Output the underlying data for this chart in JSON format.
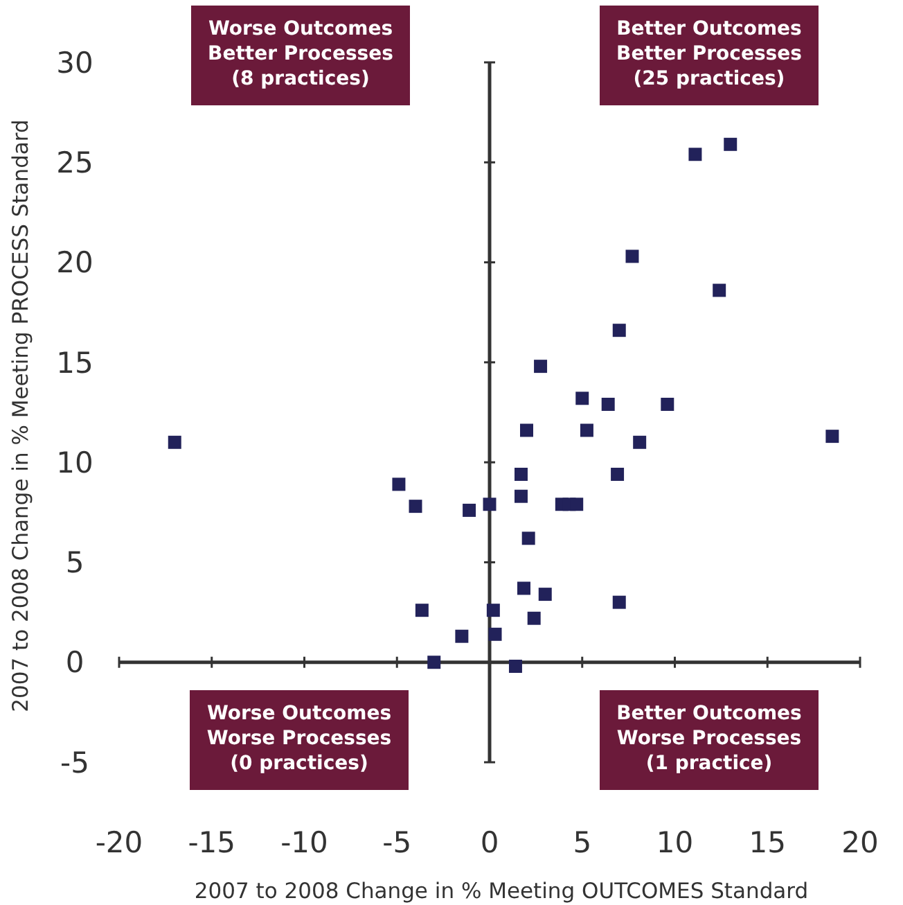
{
  "chart_data": {
    "type": "scatter",
    "xlabel": "2007 to 2008 Change in % Meeting OUTCOMES Standard",
    "ylabel": "2007 to 2008 Change in % Meeting PROCESS Standard",
    "x": [
      -17.0,
      -4.9,
      -4.0,
      -1.1,
      0.0,
      -3.65,
      -1.5,
      -3.0,
      0.2,
      0.3,
      1.4,
      11.1,
      13.0,
      7.7,
      12.4,
      7.0,
      2.75,
      5.0,
      6.4,
      9.6,
      2.0,
      5.25,
      8.1,
      18.5,
      1.7,
      6.9,
      1.7,
      3.9,
      4.3,
      4.7,
      2.1,
      1.85,
      3.0,
      7.0,
      2.4
    ],
    "values": [
      11.0,
      8.9,
      7.8,
      7.6,
      7.9,
      2.6,
      1.3,
      0.0,
      2.6,
      1.4,
      -0.2,
      25.4,
      25.9,
      20.3,
      18.6,
      16.6,
      14.8,
      13.2,
      12.9,
      12.9,
      11.6,
      11.6,
      11.0,
      11.3,
      9.4,
      9.4,
      8.3,
      7.9,
      7.9,
      7.9,
      6.2,
      3.7,
      3.4,
      3.0,
      2.2
    ],
    "color": "#22225a",
    "marker": "square",
    "xlim": [
      -20,
      20
    ],
    "ylim": [
      -5,
      30
    ],
    "xticks": [
      -20,
      -15,
      -10,
      -5,
      0,
      5,
      10,
      15,
      20
    ],
    "yticks": [
      -5,
      0,
      5,
      10,
      15,
      20,
      25,
      30
    ],
    "annotations": [
      "Worse Outcomes\nBetter Processes\n(8 practices)",
      "Better Outcomes\nBetter Processes\n(25 practices)",
      "Worse Outcomes\nWorse Processes\n(0 practices)",
      "Better Outcomes\nWorse Processes\n(1 practice)"
    ]
  }
}
